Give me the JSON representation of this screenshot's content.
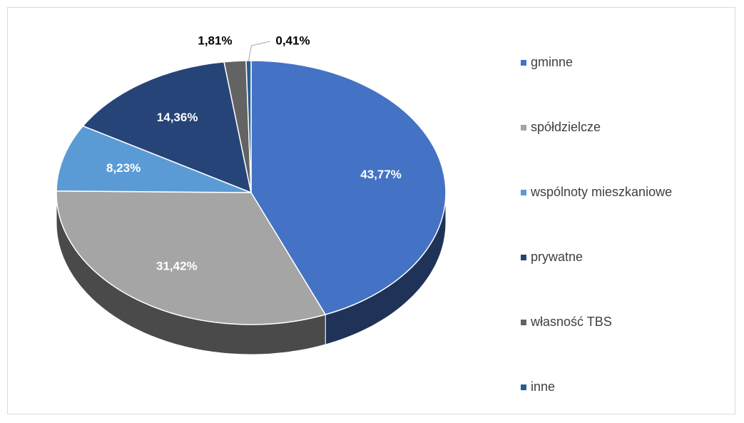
{
  "chart_data": {
    "type": "pie3d",
    "categories": [
      "gminne",
      "spółdzielcze",
      "wspólnoty mieszkaniowe",
      "prywatne",
      "własność TBS",
      "inne"
    ],
    "values": [
      43.77,
      31.42,
      8.23,
      14.36,
      1.81,
      0.41
    ],
    "value_labels": [
      "43,77%",
      "31,42%",
      "8,23%",
      "14,36%",
      "1,81%",
      "0,41%"
    ],
    "colors": [
      "#4472c4",
      "#a5a5a5",
      "#5b9bd5",
      "#264478",
      "#636363",
      "#255e91"
    ],
    "legend": "right"
  }
}
